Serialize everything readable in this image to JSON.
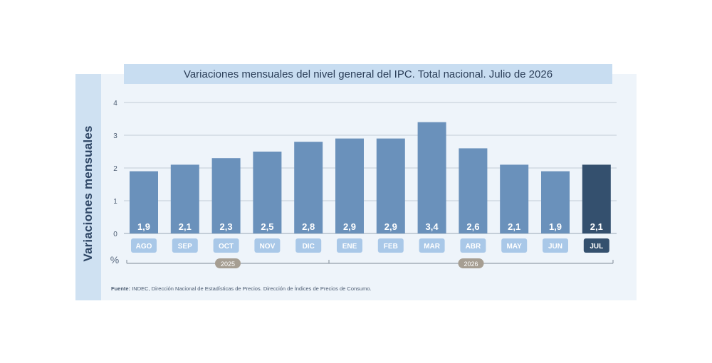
{
  "title": "Variaciones mensuales del nivel general del IPC. Total nacional. Julio de 2026",
  "side_label": "Variaciones mensuales",
  "unit_label": "%",
  "source_prefix": "Fuente:",
  "source_text": "INDEC, Dirección Nacional de Estadísticas de Precios. Dirección de Índices de Precios de Consumo.",
  "colors": {
    "bar": "#6a91bb",
    "bar_highlight": "#34506e",
    "pill": "#a9c8e8",
    "pill_highlight": "#34506e",
    "year_badge": "#a69e92"
  },
  "chart_data": {
    "type": "bar",
    "categories": [
      "AGO",
      "SEP",
      "OCT",
      "NOV",
      "DIC",
      "ENE",
      "FEB",
      "MAR",
      "ABR",
      "MAY",
      "JUN",
      "JUL"
    ],
    "values": [
      1.9,
      2.1,
      2.3,
      2.5,
      2.8,
      2.9,
      2.9,
      3.4,
      2.6,
      2.1,
      1.9,
      2.1
    ],
    "value_labels": [
      "1,9",
      "2,1",
      "2,3",
      "2,5",
      "2,8",
      "2,9",
      "2,9",
      "3,4",
      "2,6",
      "2,1",
      "1,9",
      "2,1"
    ],
    "highlight_index": 11,
    "ylim": [
      0,
      4
    ],
    "yticks": [
      0,
      1,
      2,
      3,
      4
    ],
    "grid": true,
    "year_groups": [
      {
        "label": "2025",
        "start": 0,
        "end": 4
      },
      {
        "label": "2026",
        "start": 5,
        "end": 11
      }
    ]
  }
}
